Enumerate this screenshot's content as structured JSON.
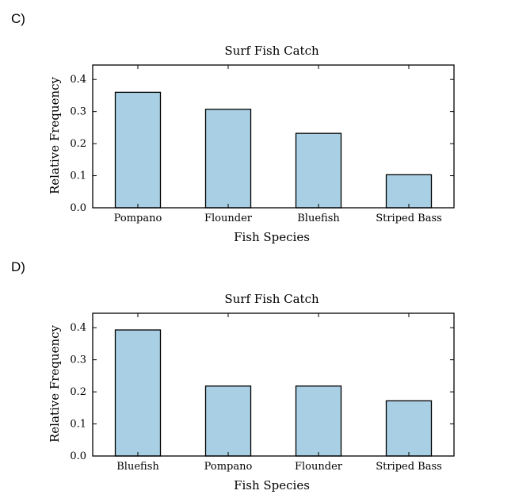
{
  "options": [
    {
      "label": "C)",
      "chart_data": {
        "type": "bar",
        "title": "Surf Fish Catch",
        "xlabel": "Fish Species",
        "ylabel": "Relative Frequency",
        "categories": [
          "Pompano",
          "Flounder",
          "Bluefish",
          "Striped Bass"
        ],
        "values": [
          0.36,
          0.307,
          0.232,
          0.103
        ],
        "ylim": [
          0,
          0.4
        ],
        "yticks": [
          "0.0",
          "0.1",
          "0.2",
          "0.3",
          "0.4"
        ],
        "bar_color": "#a8cfe3",
        "grid": false,
        "legend": "none"
      }
    },
    {
      "label": "D)",
      "chart_data": {
        "type": "bar",
        "title": "Surf Fish Catch",
        "xlabel": "Fish Species",
        "ylabel": "Relative Frequency",
        "categories": [
          "Bluefish",
          "Pompano",
          "Flounder",
          "Striped Bass"
        ],
        "values": [
          0.393,
          0.218,
          0.218,
          0.172
        ],
        "ylim": [
          0,
          0.4
        ],
        "yticks": [
          "0.0",
          "0.1",
          "0.2",
          "0.3",
          "0.4"
        ],
        "bar_color": "#a8cfe3",
        "grid": false,
        "legend": "none"
      }
    }
  ]
}
